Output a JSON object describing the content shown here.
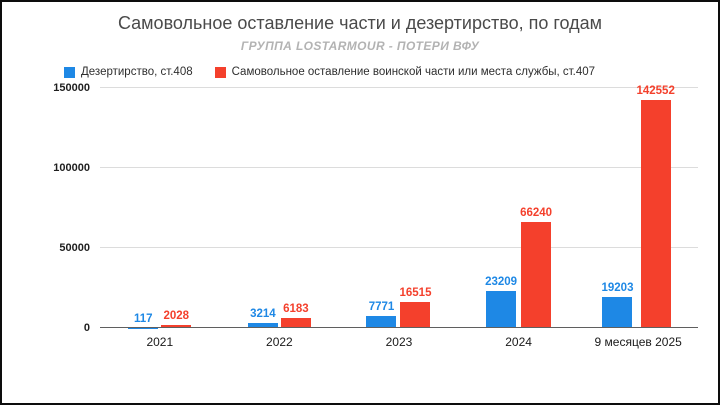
{
  "chart_data": {
    "type": "bar",
    "title": "Самовольное оставление части и дезертирство, по годам",
    "subtitle": "ГРУППА LOSTARMOUR - ПОТЕРИ ВФУ",
    "categories": [
      "2021",
      "2022",
      "2023",
      "2024",
      "9 месяцев 2025"
    ],
    "series": [
      {
        "name": "Дезертирство, ст.408",
        "color": "#1e88e5",
        "values": [
          117,
          3214,
          7771,
          23209,
          19203
        ]
      },
      {
        "name": "Самовольное оставление воинской части или места службы, ст.407",
        "color": "#f4402c",
        "values": [
          2028,
          6183,
          16515,
          66240,
          142552
        ]
      }
    ],
    "ylim": [
      0,
      150000
    ],
    "yticks": [
      0,
      50000,
      100000,
      150000
    ],
    "grid": true,
    "legend_position": "top-left",
    "colors": {
      "title_text": "#4a4a4a",
      "subtitle_text": "#b3b3b3",
      "axis_text": "#1f1f1f",
      "gridline": "#dcdcdc",
      "baseline": "#5f5f5f",
      "frame_border": "#0d0d0d",
      "background": "#ffffff"
    }
  }
}
